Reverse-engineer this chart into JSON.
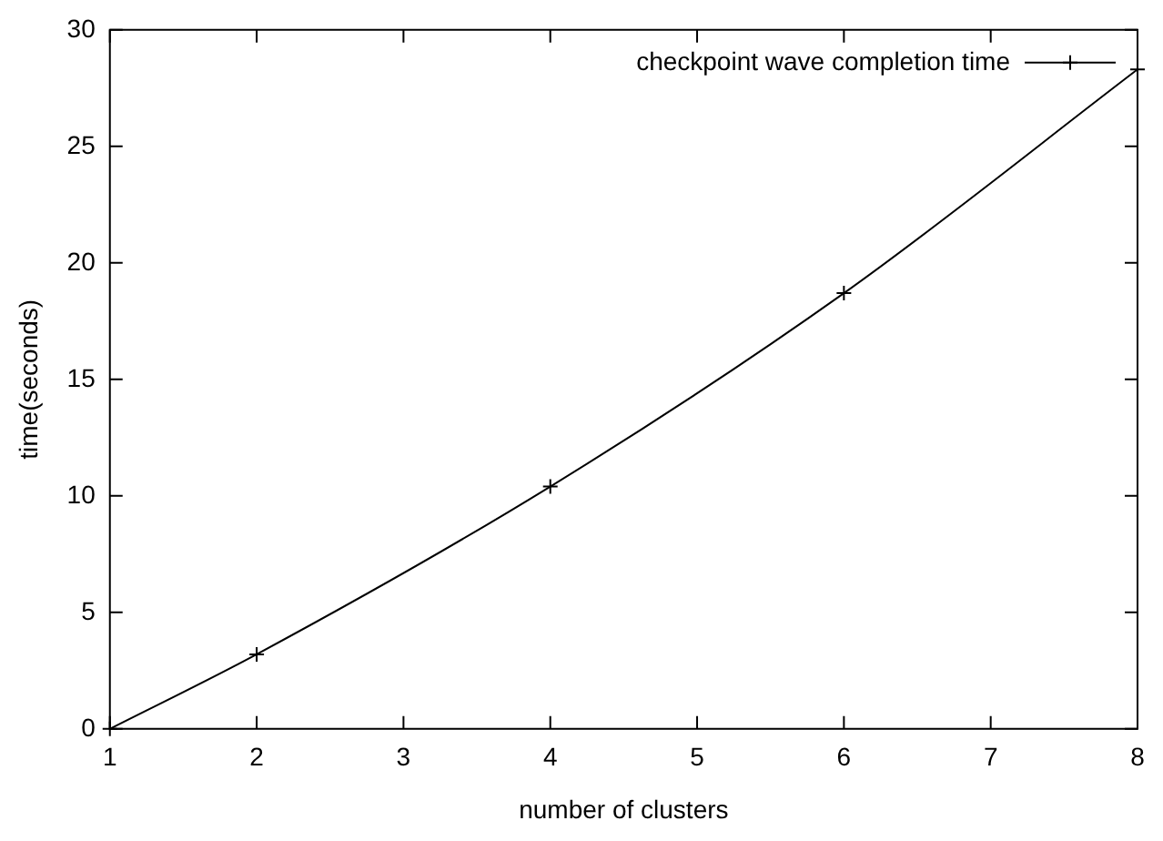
{
  "chart_data": {
    "type": "line",
    "xlabel": "number of clusters",
    "ylabel": "time(seconds)",
    "x": [
      1,
      2,
      4,
      6,
      8
    ],
    "series": [
      {
        "name": "checkpoint wave completion time",
        "color": "#000000",
        "values": [
          0,
          3.2,
          10.4,
          18.7,
          28.3
        ]
      }
    ],
    "xlim": [
      1,
      8
    ],
    "xticks": [
      1,
      2,
      3,
      4,
      5,
      6,
      7,
      8
    ],
    "ylim": [
      0,
      30
    ],
    "yticks": [
      0,
      5,
      10,
      15,
      20,
      25,
      30
    ],
    "grid": false,
    "legend": "top right",
    "marker": "cross",
    "line_style": "solid"
  }
}
